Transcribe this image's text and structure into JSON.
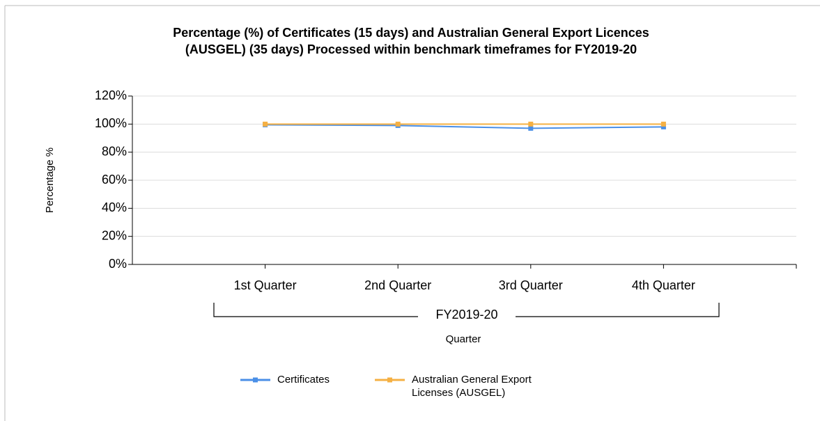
{
  "chart_data": {
    "type": "line",
    "title": [
      "Percentage (%) of Certificates (15 days) and Australian General Export Licences",
      "(AUSGEL) (35 days) Processed within benchmark timeframes for FY2019-20"
    ],
    "y_label": "Percentage %",
    "x_label": "Quarter",
    "group_label": "FY2019-20",
    "categories": [
      "1st Quarter",
      "2nd Quarter",
      "3rd Quarter",
      "4th Quarter"
    ],
    "series": [
      {
        "name": "Certificates",
        "color": "#4a8fe7",
        "values": [
          99.5,
          99,
          97,
          98
        ]
      },
      {
        "name": "Australian General Export Licenses (AUSGEL)",
        "color": "#f5b043",
        "values": [
          100,
          100,
          100,
          100
        ]
      }
    ],
    "ylim": [
      0,
      120
    ],
    "yticks": [
      {
        "value": 0,
        "label": "0%"
      },
      {
        "value": 20,
        "label": "20%"
      },
      {
        "value": 40,
        "label": "40%"
      },
      {
        "value": 60,
        "label": "60%"
      },
      {
        "value": 80,
        "label": "80%"
      },
      {
        "value": 100,
        "label": "100%"
      },
      {
        "value": 120,
        "label": "120%"
      }
    ],
    "grid": true
  }
}
